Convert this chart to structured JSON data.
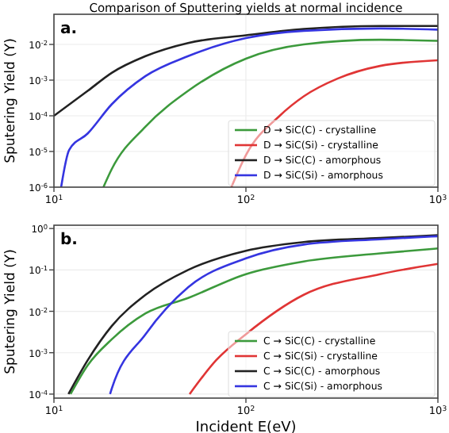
{
  "chart_data": [
    {
      "type": "line",
      "title": "Comparison of Sputtering yields at normal incidence",
      "ylabel": "Sputering Yield (Y)",
      "annotations": [
        "a."
      ],
      "log": "xy",
      "grid": true,
      "legend": "bottom right",
      "xlim": [
        10,
        1000
      ],
      "xticks": [
        {
          "value": 10,
          "label": "10$^{1}$"
        },
        {
          "value": 100,
          "label": "10$^{2}$"
        },
        {
          "value": 1000,
          "label": "10$^{3}$"
        }
      ],
      "ylim": [
        1e-06,
        0.07
      ],
      "yticks": [
        {
          "value": 1e-06,
          "label": "10$^{-6}$"
        },
        {
          "value": 1e-05,
          "label": "10$^{-5}$"
        },
        {
          "value": 0.0001,
          "label": "10$^{-4}$"
        },
        {
          "value": 0.001,
          "label": "10$^{-3}$"
        },
        {
          "value": 0.01,
          "label": "10$^{-2}$"
        }
      ],
      "series": [
        {
          "name": "D → SiC(C) - crystalline",
          "color": "#3c9a3c",
          "x": [
            18.1,
            20,
            30,
            50,
            100,
            200,
            500,
            1000
          ],
          "values": [
            1e-06,
            3.2e-06,
            5e-05,
            0.0005,
            0.004,
            0.01,
            0.0135,
            0.0126
          ]
        },
        {
          "name": "D → SiC(Si) - crystalline",
          "color": "#e03535",
          "x": [
            84,
            100,
            150,
            200,
            300,
            500,
            1000
          ],
          "values": [
            1e-06,
            7.9e-06,
            0.0001,
            0.00035,
            0.0011,
            0.0025,
            0.0036
          ]
        },
        {
          "name": "D → SiC(C) - amorphous",
          "color": "#222222",
          "x": [
            10,
            15,
            20,
            30,
            50,
            100,
            200,
            500,
            1000
          ],
          "values": [
            0.0001,
            0.0005,
            0.0016,
            0.0047,
            0.011,
            0.018,
            0.027,
            0.033,
            0.033
          ]
        },
        {
          "name": "D → SiC(Si) - amorphous",
          "color": "#3535e0",
          "x": [
            10.9,
            12,
            15,
            20,
            30,
            50,
            100,
            200,
            500,
            1000
          ],
          "values": [
            1e-06,
            1.1e-05,
            3.2e-05,
            0.00021,
            0.0013,
            0.0047,
            0.015,
            0.024,
            0.028,
            0.026
          ]
        }
      ]
    },
    {
      "type": "line",
      "xlabel": "Incident E(eV)",
      "ylabel": "Sputering Yield (Y)",
      "annotations": [
        "b."
      ],
      "log": "xy",
      "grid": true,
      "legend": "bottom right",
      "xlim": [
        10,
        1000
      ],
      "xticks": [
        {
          "value": 10,
          "label": "10$^{1}$"
        },
        {
          "value": 100,
          "label": "10$^{2}$"
        },
        {
          "value": 1000,
          "label": "10$^{3}$"
        }
      ],
      "ylim": [
        8e-05,
        1.2
      ],
      "yticks": [
        {
          "value": 0.0001,
          "label": "10$^{-4}$"
        },
        {
          "value": 0.001,
          "label": "10$^{-3}$"
        },
        {
          "value": 0.01,
          "label": "10$^{-2}$"
        },
        {
          "value": 0.1,
          "label": "10$^{-1}$"
        },
        {
          "value": 1,
          "label": "10$^{0}$"
        }
      ],
      "series": [
        {
          "name": "C → SiC(C) - crystalline",
          "color": "#3c9a3c",
          "x": [
            12.2,
            15,
            20,
            30,
            50,
            100,
            200,
            500,
            1000
          ],
          "values": [
            0.0001,
            0.0005,
            0.0021,
            0.0089,
            0.021,
            0.079,
            0.16,
            0.25,
            0.33
          ]
        },
        {
          "name": "C → SiC(Si) - crystalline",
          "color": "#e03535",
          "x": [
            50.9,
            70,
            100,
            200,
            500,
            1000
          ],
          "values": [
            0.0001,
            0.00066,
            0.0028,
            0.025,
            0.079,
            0.14
          ]
        },
        {
          "name": "C → SiC(C) - amorphous",
          "color": "#222222",
          "x": [
            11.9,
            15,
            20,
            30,
            50,
            100,
            200,
            500,
            1000
          ],
          "values": [
            0.0001,
            0.00066,
            0.0044,
            0.025,
            0.1,
            0.29,
            0.47,
            0.59,
            0.69
          ]
        },
        {
          "name": "C → SiC(Si) - amorphous",
          "color": "#3535e0",
          "x": [
            19.6,
            20,
            30,
            50,
            100,
            200,
            500,
            1000
          ],
          "values": [
            0.0001,
            0.000135,
            0.0028,
            0.038,
            0.19,
            0.41,
            0.55,
            0.65
          ]
        }
      ]
    }
  ]
}
